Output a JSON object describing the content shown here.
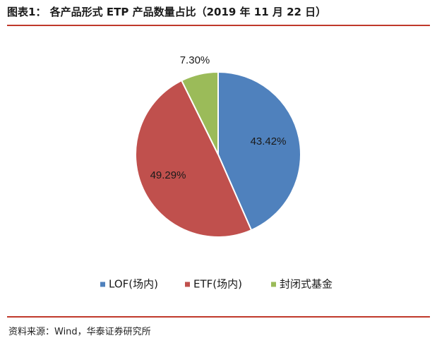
{
  "header": {
    "title": "图表1： 各产品形式 ETP 产品数量占比（2019 年 11 月 22 日）"
  },
  "footer": {
    "source": "资料来源：Wind，华泰证券研究所"
  },
  "colors": {
    "rule": "#c0392b",
    "lof": "#4f81bd",
    "etf": "#c0504d",
    "closed": "#9bbb59"
  },
  "chart_data": {
    "type": "pie",
    "title": "",
    "legend_position": "bottom",
    "start_angle_deg": 0,
    "direction": "clockwise",
    "slices": [
      {
        "name": "LOF(场内)",
        "value": 43.42,
        "label": "43.42%",
        "color": "#4f81bd"
      },
      {
        "name": "ETF(场内)",
        "value": 49.29,
        "label": "49.29%",
        "color": "#c0504d"
      },
      {
        "name": "封闭式基金",
        "value": 7.3,
        "label": "7.30%",
        "color": "#9bbb59"
      }
    ]
  }
}
